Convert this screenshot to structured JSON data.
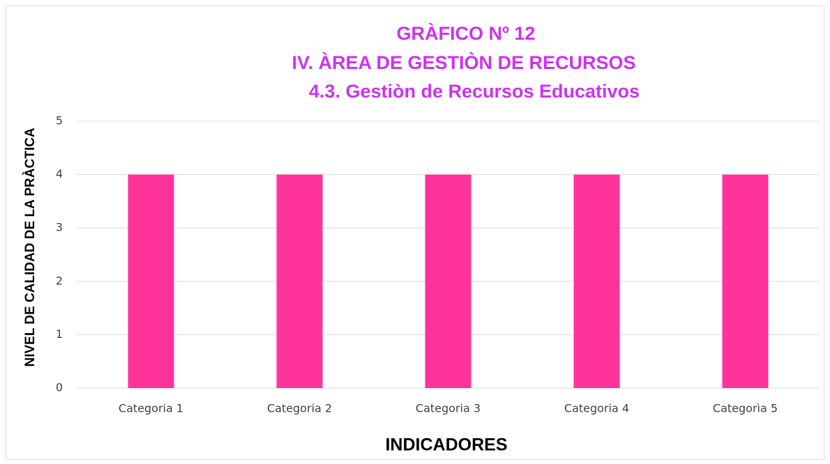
{
  "chart_data": {
    "type": "bar",
    "title": [
      "GRÀFICO Nº 12",
      "IV. ÀREA DE GESTIÒN DE RECURSOS",
      "4.3. Gestiòn de Recursos Educativos"
    ],
    "x_label": "INDICADORES",
    "y_label": "NIVEL DE CALIDAD DE LA PRÀCTICA",
    "categories": [
      "Categoria 1",
      "Categoria 2",
      "Categoria 3",
      "Categoria 4",
      "Categorìa 5"
    ],
    "values": [
      4,
      4,
      4,
      4,
      4
    ],
    "color": "#ff3399",
    "ylim": [
      0,
      5
    ],
    "yticks": [
      0,
      1,
      2,
      3,
      4,
      5
    ],
    "grid": true
  }
}
